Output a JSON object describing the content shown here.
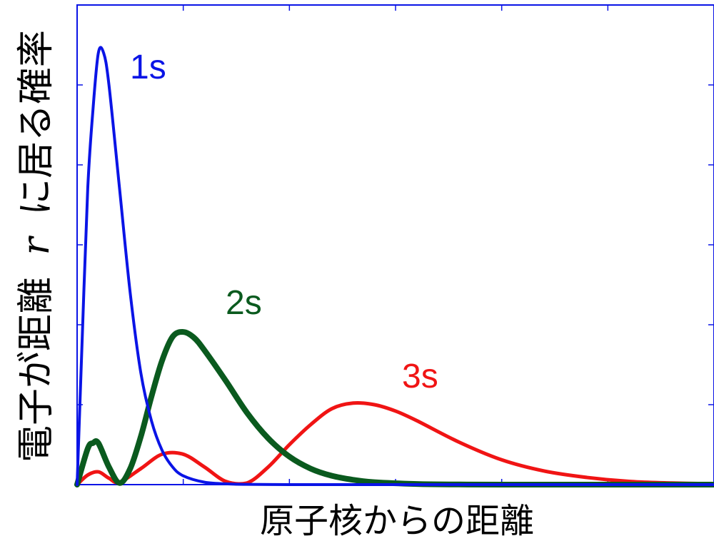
{
  "chart_data": {
    "type": "line",
    "xlabel": "原子核からの距離",
    "ylabel": "電子が距離 r に居る確率",
    "ylabel_parts": [
      "電子が距離",
      "r",
      "に居る確率"
    ],
    "xlim": [
      0,
      30
    ],
    "ylim": [
      0,
      0.6
    ],
    "x_ticks": [
      0,
      5,
      10,
      15,
      20,
      25,
      30
    ],
    "y_ticks": [
      0,
      0.1,
      0.2,
      0.3,
      0.4,
      0.5,
      0.6
    ],
    "tick_labels_visible": false,
    "grid": false,
    "series": [
      {
        "name": "1s",
        "color": "#0a14e6",
        "stroke": 4,
        "x": [
          0,
          0.25,
          0.5,
          0.75,
          1,
          1.25,
          1.5,
          2,
          2.5,
          3,
          3.5,
          4,
          4.5,
          5,
          6,
          7,
          8,
          10,
          12,
          30
        ],
        "y": [
          0,
          0.19,
          0.37,
          0.47,
          0.54,
          0.54,
          0.5,
          0.37,
          0.24,
          0.14,
          0.08,
          0.043,
          0.022,
          0.011,
          0.003,
          0.001,
          0.0003,
          0,
          0,
          0
        ]
      },
      {
        "name": "2s",
        "color": "#0a5a1e",
        "stroke": 8,
        "x": [
          0,
          0.5,
          0.75,
          1,
          1.5,
          2,
          2.5,
          3,
          3.5,
          4,
          4.5,
          5,
          5.5,
          6,
          7,
          8,
          9,
          10,
          11,
          12,
          13,
          14,
          16,
          18,
          20,
          30
        ],
        "y": [
          0,
          0.045,
          0.052,
          0.052,
          0.022,
          0.002,
          0.02,
          0.06,
          0.11,
          0.155,
          0.185,
          0.191,
          0.184,
          0.168,
          0.13,
          0.09,
          0.058,
          0.035,
          0.02,
          0.011,
          0.006,
          0.003,
          0.0008,
          0.0002,
          0,
          0
        ]
      },
      {
        "name": "3s",
        "color": "#f01414",
        "stroke": 5,
        "x": [
          0,
          0.5,
          1,
          1.5,
          2,
          3,
          4,
          5,
          6,
          7,
          8,
          9,
          10,
          11,
          12,
          13,
          14,
          15,
          16,
          18,
          20,
          22,
          24,
          26,
          28,
          30
        ],
        "y": [
          0,
          0.012,
          0.016,
          0.008,
          0.003,
          0.02,
          0.038,
          0.038,
          0.022,
          0.004,
          0.002,
          0.022,
          0.05,
          0.075,
          0.095,
          0.102,
          0.1,
          0.092,
          0.08,
          0.053,
          0.031,
          0.017,
          0.009,
          0.004,
          0.002,
          0.001
        ]
      }
    ],
    "annotations": [
      "1s",
      "2s",
      "3s"
    ]
  }
}
